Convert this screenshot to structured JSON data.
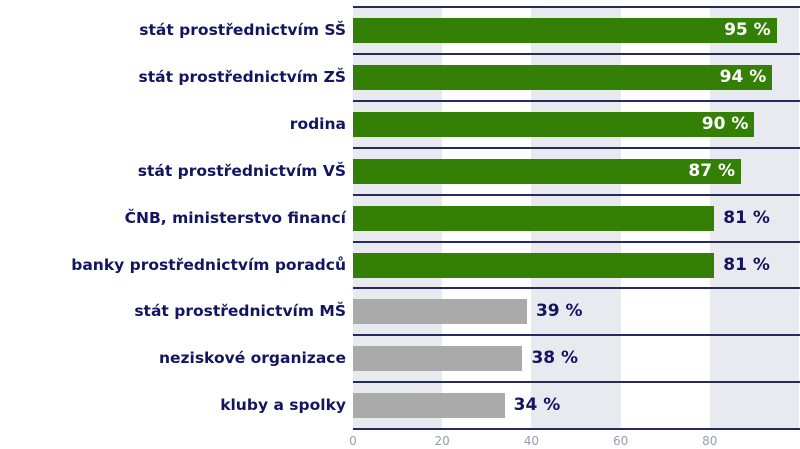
{
  "chart_data": {
    "type": "bar",
    "orientation": "horizontal",
    "title": "",
    "xlabel": "",
    "ylabel": "",
    "xlim": [
      0,
      100
    ],
    "x_ticks": [
      "0",
      "20",
      "40",
      "60",
      "80"
    ],
    "grid": "alternating vertical bands",
    "categories": [
      "stát prostřednictvím SŠ",
      "stát prostřednictvím ZŠ",
      "rodina",
      "stát prostřednictvím VŠ",
      "ČNB, ministerstvo financí",
      "banky prostřednictvím poradců",
      "stát prostřednictvím MŠ",
      "neziskové organizace",
      "kluby a spolky"
    ],
    "values": [
      95,
      94,
      90,
      87,
      81,
      81,
      39,
      38,
      34
    ],
    "labels": [
      "95 %",
      "94 %",
      "90 %",
      "87 %",
      "81 %",
      "81 %",
      "39 %",
      "38 %",
      "34 %"
    ],
    "colors": [
      "#347f05",
      "#347f05",
      "#347f05",
      "#347f05",
      "#347f05",
      "#347f05",
      "#aaaaaa",
      "#aaaaaa",
      "#aaaaaa"
    ],
    "label_position": [
      "inside",
      "inside",
      "inside",
      "inside",
      "outside",
      "outside",
      "outside",
      "outside",
      "outside"
    ]
  }
}
